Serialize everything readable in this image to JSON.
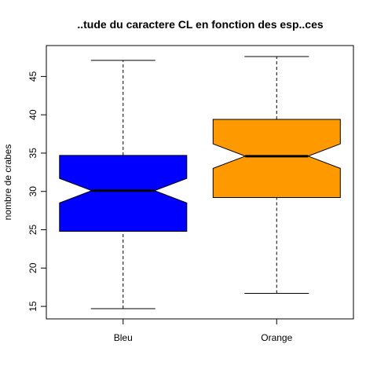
{
  "chart_data": {
    "type": "boxplot",
    "title": "..tude du caractere CL en fonction des esp..ces",
    "xlabel": "",
    "ylabel": "nombre de crabes",
    "ylim": [
      13.7,
      48.7
    ],
    "yticks": [
      15,
      20,
      25,
      30,
      35,
      40,
      45
    ],
    "notched": true,
    "grid": false,
    "categories": [
      "Bleu",
      "Orange"
    ],
    "series": [
      {
        "name": "Bleu",
        "color": "#0000ff",
        "whisker_low": 14.7,
        "q1": 24.8,
        "median": 30.1,
        "q3": 34.7,
        "whisker_high": 47.1,
        "notch_low": 28.5,
        "notch_high": 31.7
      },
      {
        "name": "Orange",
        "color": "#ff9900",
        "whisker_low": 16.7,
        "q1": 29.2,
        "median": 34.6,
        "q3": 39.4,
        "whisker_high": 47.6,
        "notch_low": 33.0,
        "notch_high": 36.2
      }
    ]
  }
}
